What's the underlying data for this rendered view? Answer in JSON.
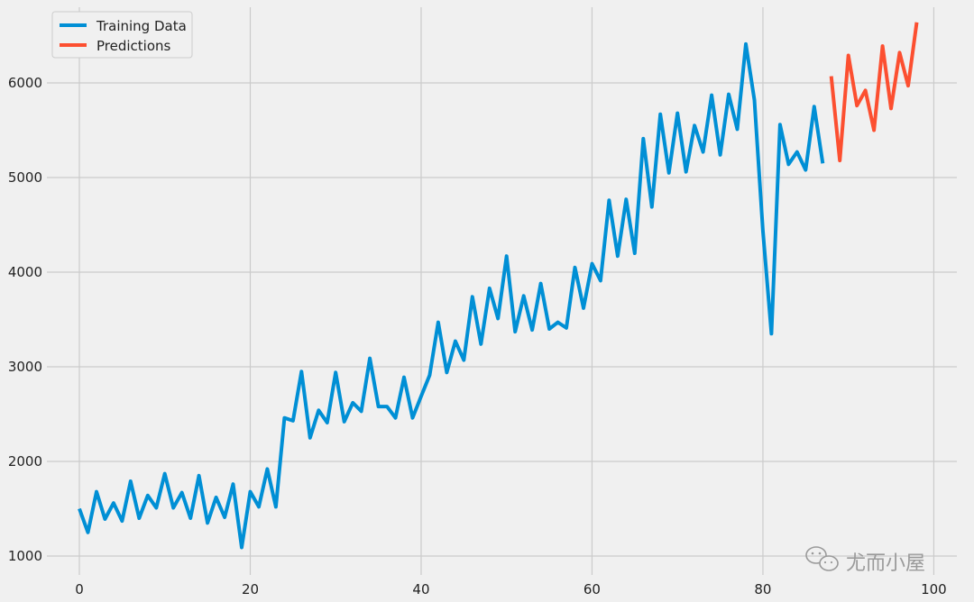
{
  "chart_data": {
    "type": "line",
    "title": "",
    "xlabel": "",
    "ylabel": "",
    "xlim": [
      -3.8,
      102.7
    ],
    "ylim": [
      800,
      6800
    ],
    "xticks": [
      0,
      20,
      40,
      60,
      80,
      100
    ],
    "yticks": [
      1000,
      2000,
      3000,
      4000,
      5000,
      6000
    ],
    "grid": true,
    "legend_position": "top-left",
    "background": "#f0f0f0",
    "series": [
      {
        "name": "Training Data",
        "color": "#008fd5",
        "x": [
          0,
          1,
          2,
          3,
          4,
          5,
          6,
          7,
          8,
          9,
          10,
          11,
          12,
          13,
          14,
          15,
          16,
          17,
          18,
          19,
          20,
          21,
          22,
          23,
          24,
          25,
          26,
          27,
          28,
          29,
          30,
          31,
          32,
          33,
          34,
          35,
          36,
          37,
          38,
          39,
          40,
          41,
          42,
          43,
          44,
          45,
          46,
          47,
          48,
          49,
          50,
          51,
          52,
          53,
          54,
          55,
          56,
          57,
          58,
          59,
          60,
          61,
          62,
          63,
          64,
          65,
          66,
          67,
          68,
          69,
          70,
          71,
          72,
          73,
          74,
          75,
          76,
          77,
          78,
          79,
          80,
          81,
          82,
          83,
          84,
          85,
          86,
          87
        ],
        "y": [
          1500,
          1250,
          1680,
          1390,
          1560,
          1370,
          1790,
          1400,
          1640,
          1510,
          1870,
          1510,
          1670,
          1400,
          1850,
          1350,
          1620,
          1410,
          1760,
          1090,
          1680,
          1520,
          1920,
          1520,
          2460,
          2430,
          2950,
          2250,
          2540,
          2410,
          2940,
          2420,
          2620,
          2530,
          3090,
          2580,
          2580,
          2460,
          2890,
          2460,
          2690,
          2910,
          3470,
          2940,
          3270,
          3070,
          3740,
          3240,
          3830,
          3510,
          4170,
          3370,
          3750,
          3390,
          3880,
          3400,
          3470,
          3410,
          4050,
          3620,
          4090,
          3910,
          4760,
          4170,
          4770,
          4200,
          5410,
          4690,
          5670,
          5050,
          5680,
          5060,
          5550,
          5270,
          5870,
          5240,
          5880,
          5510,
          6410,
          5820,
          4440,
          3350,
          5560,
          5140,
          5270,
          5080,
          5750,
          5150
        ]
      },
      {
        "name": "Predictions",
        "color": "#fc4f30",
        "x": [
          88,
          89,
          90,
          91,
          92,
          93,
          94,
          95,
          96,
          97,
          98
        ],
        "y": [
          6070,
          5180,
          6290,
          5760,
          5920,
          5500,
          6390,
          5730,
          6320,
          5970,
          6640
        ]
      }
    ]
  },
  "legend": {
    "training_label": "Training Data",
    "predictions_label": "Predictions"
  },
  "watermark": {
    "text": "尤而小屋"
  }
}
